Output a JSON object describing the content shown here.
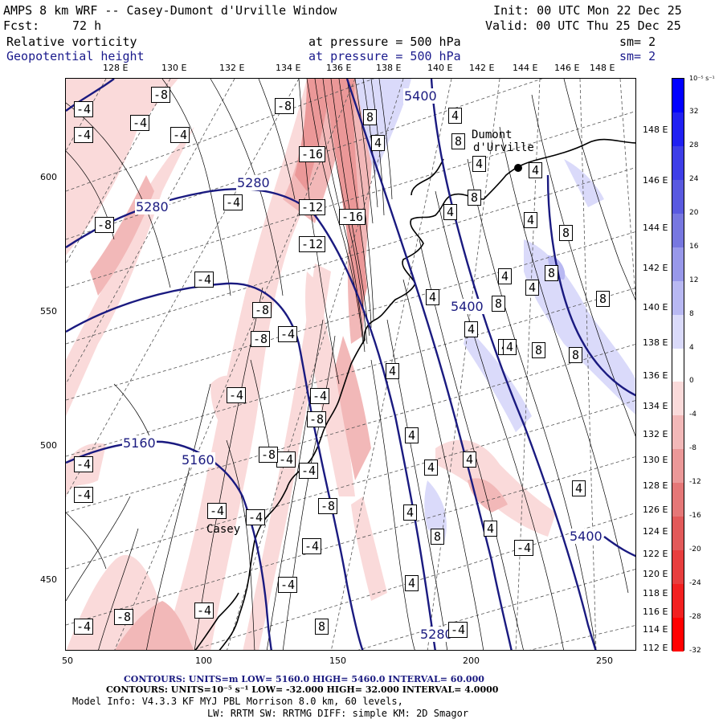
{
  "header": {
    "model_title": "AMPS 8 km WRF -- Casey-Dumont d'Urville Window",
    "init": "Init: 00 UTC Mon 22 Dec 25",
    "fcst_label": "Fcst:",
    "fcst_value": "72 h",
    "valid": "Valid: 00 UTC Thu 25 Dec 25",
    "field1_name": "Relative vorticity",
    "field1_level": "at pressure =  500 hPa",
    "field1_sm": "sm= 2",
    "field2_name": "Geopotential height",
    "field2_level": "at pressure =  500 hPa",
    "field2_sm": "sm= 2"
  },
  "map": {
    "top_lon_labels": [
      "128 E",
      "130 E",
      "132 E",
      "134 E",
      "136 E",
      "138 E",
      "140 E",
      "142 E",
      "144 E",
      "146 E",
      "148 E"
    ],
    "right_lat_labels": [
      "148 E",
      "146 E",
      "144 E",
      "142 E",
      "140 E",
      "138 E",
      "136 E",
      "134 E",
      "132 E",
      "130 E",
      "128 E",
      "126 E",
      "124 E",
      "122 E",
      "120 E",
      "118 E",
      "116 E",
      "114 E",
      "112 E"
    ],
    "x_ticks": [
      "50",
      "100",
      "150",
      "200",
      "250"
    ],
    "y_ticks": [
      "600",
      "550",
      "500",
      "450"
    ],
    "stations": [
      {
        "name": "Dumont d'Urville"
      },
      {
        "name": "Casey"
      }
    ],
    "height_labels": [
      "5400",
      "5280",
      "5280",
      "5400",
      "5160",
      "5160",
      "5400",
      "5280"
    ],
    "vort_labels_neg": [
      "-4",
      "-8",
      "-4",
      "-4",
      "-4",
      "-16",
      "-12",
      "-12",
      "-8",
      "-16",
      "-4",
      "-8",
      "-8",
      "-4",
      "-8",
      "-4",
      "-4",
      "-8",
      "-4",
      "-4",
      "-4",
      "-8",
      "-4",
      "-8",
      "-4",
      "-4",
      "-4",
      "-4",
      "-8",
      "-4",
      "-4",
      "-4",
      "-4",
      "-4"
    ],
    "vort_labels_pos": [
      "4",
      "8",
      "4",
      "8",
      "4",
      "4",
      "4",
      "8",
      "4",
      "4",
      "8",
      "8",
      "4",
      "8",
      "4",
      "8",
      "4",
      "4",
      "8",
      "8",
      "4",
      "4",
      "4",
      "4",
      "4",
      "4",
      "4",
      "8",
      "4",
      "4",
      "4",
      "8"
    ]
  },
  "colorbar": {
    "unit": "10⁻⁵ s⁻¹",
    "ticks": [
      "32",
      "28",
      "24",
      "20",
      "16",
      "12",
      "8",
      "4",
      "0",
      "-4",
      "-8",
      "-12",
      "-16",
      "-20",
      "-24",
      "-28",
      "-32"
    ],
    "colors": [
      "#0000ff",
      "#2020f2",
      "#3e3ee8",
      "#5a5ae0",
      "#7777e0",
      "#9898ea",
      "#b8b8f2",
      "#dadafa",
      "#ffffff",
      "#fadada",
      "#f2b8b8",
      "#eb9898",
      "#e57777",
      "#e25a5a",
      "#e83e3e",
      "#f22020",
      "#ff0000"
    ]
  },
  "footer": {
    "contours1": "CONTOURS:  UNITS=m  LOW=  5160.0          HIGH=  5460.0          INTERVAL=   60.000",
    "contours2": "CONTOURS:  UNITS=10⁻⁵ s⁻¹   LOW=  -32.000          HIGH=  32.000          INTERVAL=   4.0000",
    "model_info": "Model Info: V4.3.3    KF      MYJ PBL  Morrison          8.0 km,  60 levels,",
    "model_info2": "LW: RRTM SW: RRTMG   DIFF: simple KM: 2D Smagor"
  }
}
